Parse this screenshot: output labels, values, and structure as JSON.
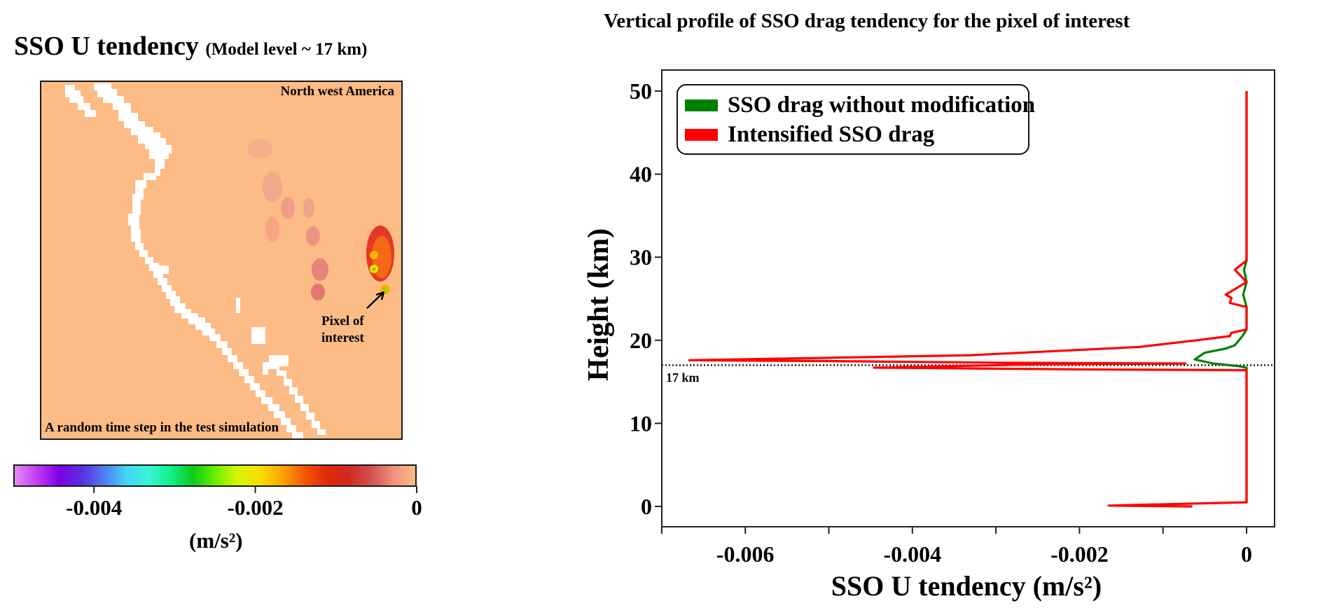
{
  "left_panel": {
    "title": "SSO U tendency",
    "subtitle": "(Model level ~ 17 km)",
    "map": {
      "region_label": "North west America",
      "caption": "A random time step in the test simulation",
      "annotation_line1": "Pixel of",
      "annotation_line2": "interest",
      "background_color": "#fdbb85",
      "mask_color": "#ffffff"
    },
    "colorbar": {
      "range": [
        -0.005,
        0
      ],
      "ticks": [
        {
          "value": -0.004,
          "label": "-0.004"
        },
        {
          "value": -0.002,
          "label": "-0.002"
        },
        {
          "value": 0,
          "label": "0"
        }
      ],
      "unit_label": "(m/s²)",
      "colors": [
        "#e38cf5",
        "#c43cf0",
        "#7d00e8",
        "#5a2ee0",
        "#4f7cf0",
        "#45d4f7",
        "#3af5d5",
        "#12f08a",
        "#0ccc1a",
        "#66f000",
        "#d8f500",
        "#f5e000",
        "#ffa600",
        "#f55a00",
        "#e02a0a",
        "#d02a20",
        "#d45050",
        "#f0907a",
        "#fdbb85"
      ]
    }
  },
  "chart_data": {
    "type": "line",
    "title": "Vertical profile of SSO drag tendency for the pixel of interest",
    "xlabel": "SSO U tendency (m/s²)",
    "ylabel": "Height (km)",
    "xlim": [
      -0.007,
      0.00035
    ],
    "ylim": [
      -2.5,
      52
    ],
    "xticks": [
      {
        "value": -0.007,
        "label": ""
      },
      {
        "value": -0.006,
        "label": "-0.006"
      },
      {
        "value": -0.005,
        "label": ""
      },
      {
        "value": -0.004,
        "label": "-0.004"
      },
      {
        "value": -0.003,
        "label": ""
      },
      {
        "value": -0.002,
        "label": "-0.002"
      },
      {
        "value": -0.001,
        "label": ""
      },
      {
        "value": 0,
        "label": "0"
      }
    ],
    "yticks": [
      {
        "value": 0,
        "label": "0"
      },
      {
        "value": 10,
        "label": "10"
      },
      {
        "value": 20,
        "label": "20"
      },
      {
        "value": 30,
        "label": "30"
      },
      {
        "value": 40,
        "label": "40"
      },
      {
        "value": 50,
        "label": "50"
      }
    ],
    "grid": false,
    "legend_position": "top-left",
    "reference_line": {
      "y": 17,
      "label": "17 km",
      "style": "dotted"
    },
    "series": [
      {
        "name": "SSO drag without modification",
        "color": "#008000",
        "points": [
          [
            0,
            50
          ],
          [
            0,
            30
          ],
          [
            0,
            29.6
          ],
          [
            -3e-05,
            28.5
          ],
          [
            0,
            27
          ],
          [
            -4e-05,
            25.5
          ],
          [
            0,
            24
          ],
          [
            0,
            21.3
          ],
          [
            -5e-05,
            20.5
          ],
          [
            -0.00014,
            19.4
          ],
          [
            -0.00025,
            19.0
          ],
          [
            -0.0005,
            18.5
          ],
          [
            -0.00062,
            17.7
          ],
          [
            -0.0004,
            17.2
          ],
          [
            -0.0001,
            16.9
          ],
          [
            0,
            16.7
          ],
          [
            0,
            0.5
          ]
        ]
      },
      {
        "name": "Intensified SSO drag",
        "color": "#ff0000",
        "points": [
          [
            0,
            50
          ],
          [
            0,
            29.6
          ],
          [
            -0.00014,
            28.5
          ],
          [
            0,
            27
          ],
          [
            -0.00025,
            25.5
          ],
          [
            -0.00018,
            25.1
          ],
          [
            -0.0002,
            24.5
          ],
          [
            0,
            24
          ],
          [
            0,
            21.3
          ],
          [
            -0.00018,
            20.9
          ],
          [
            -0.0002,
            20.5
          ],
          [
            -0.0006,
            20.0
          ],
          [
            -0.00128,
            19.2
          ],
          [
            -0.0033,
            18.2
          ],
          [
            -0.0055,
            17.8
          ],
          [
            -0.00667,
            17.6
          ],
          [
            -0.005,
            17.5
          ],
          [
            -0.003,
            17.3
          ],
          [
            -0.00073,
            17.2
          ],
          [
            -0.0025,
            17.1
          ],
          [
            -0.00446,
            16.7
          ],
          [
            -0.002,
            16.5
          ],
          [
            0,
            16.4
          ],
          [
            0,
            0.5
          ],
          [
            -0.00165,
            0.1
          ],
          [
            -0.00065,
            0.0
          ]
        ]
      }
    ]
  }
}
